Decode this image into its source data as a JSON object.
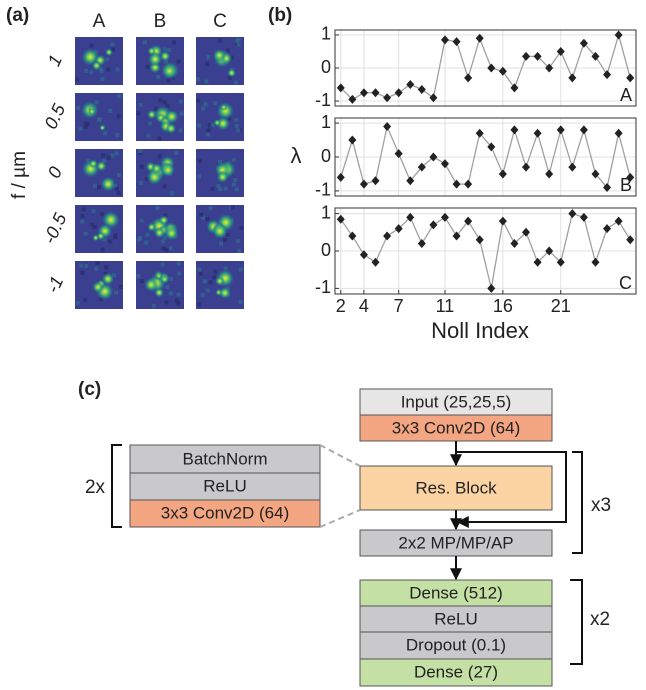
{
  "panel_a": {
    "label": "(a)",
    "columns": [
      "A",
      "B",
      "C"
    ],
    "rows": [
      "1",
      "0.5",
      "0",
      "-0.5",
      "-1"
    ],
    "y_label": "f / µm"
  },
  "chart_data": {
    "type": "line",
    "label": "(b)",
    "x_label": "Noll Index",
    "y_label": "λ",
    "x": [
      2,
      3,
      4,
      5,
      6,
      7,
      8,
      9,
      10,
      11,
      12,
      13,
      14,
      15,
      16,
      17,
      18,
      19,
      20,
      21,
      22,
      23,
      24,
      25,
      26,
      27
    ],
    "xlim": [
      1.5,
      27.5
    ],
    "xticks": [
      2,
      4,
      7,
      11,
      16,
      21
    ],
    "ylim": [
      -1.15,
      1.15
    ],
    "yticks": [
      -1,
      0,
      1
    ],
    "grid": true,
    "line_color": "#a0a0a0",
    "marker_color": "#222222",
    "series": [
      {
        "name": "A",
        "values": [
          -0.6,
          -0.95,
          -0.75,
          -0.75,
          -0.9,
          -0.75,
          -0.5,
          -0.65,
          -0.9,
          0.85,
          0.8,
          -0.3,
          0.9,
          0.0,
          -0.1,
          -0.6,
          0.35,
          0.35,
          0.0,
          0.5,
          -0.3,
          0.75,
          0.35,
          -0.2,
          1.0,
          -0.3
        ]
      },
      {
        "name": "B",
        "values": [
          -0.6,
          0.5,
          -0.8,
          -0.7,
          0.9,
          0.1,
          -0.7,
          -0.3,
          0.0,
          -0.2,
          -0.8,
          -0.8,
          0.7,
          0.3,
          -0.5,
          0.8,
          -0.3,
          0.7,
          -0.5,
          0.8,
          -0.3,
          0.8,
          -0.5,
          -0.9,
          0.7,
          -0.6
        ]
      },
      {
        "name": "C",
        "values": [
          0.85,
          0.4,
          -0.1,
          -0.3,
          0.4,
          0.6,
          0.9,
          0.2,
          0.7,
          0.9,
          0.4,
          0.8,
          0.3,
          -1.0,
          0.8,
          0.2,
          0.5,
          -0.3,
          0.0,
          -0.3,
          1.0,
          0.9,
          -0.3,
          0.6,
          0.8,
          0.3
        ]
      }
    ]
  },
  "diagram": {
    "label": "(c)",
    "main": [
      "Input (25,25,5)",
      "3x3 Conv2D (64)",
      "Res. Block",
      "2x2 MP/MP/AP",
      "Dense (512)",
      "ReLU",
      "Dropout (0.1)",
      "Dense (27)"
    ],
    "res_block": [
      "BatchNorm",
      "ReLU",
      "3x3 Conv2D (64)"
    ],
    "repeats": [
      "2x",
      "x3",
      "x2"
    ]
  }
}
